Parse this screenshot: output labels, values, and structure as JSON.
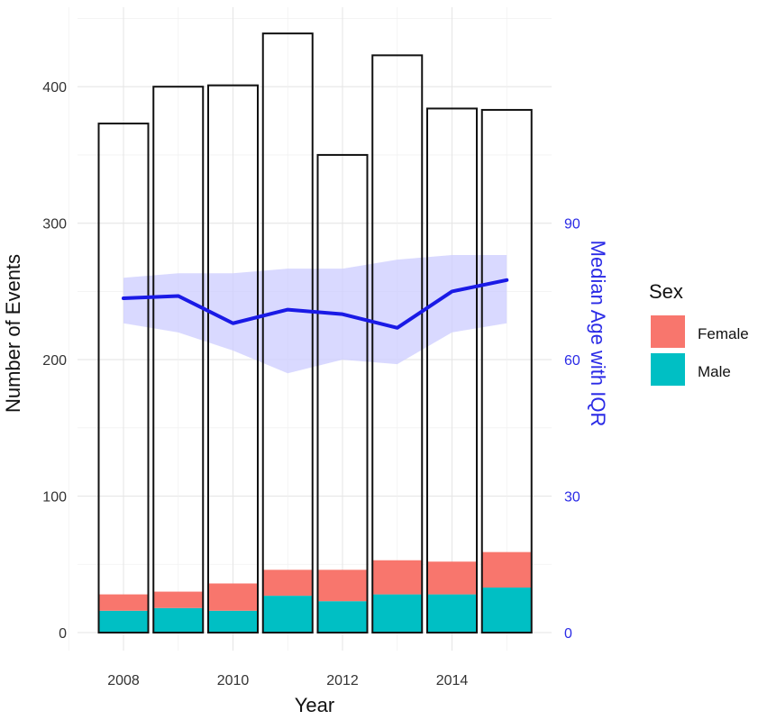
{
  "chart_data": {
    "type": "bar",
    "title": "",
    "xlabel": "Year",
    "ylabel": "Number of Events",
    "y2label": "Median Age with IQR",
    "categories": [
      2008,
      2009,
      2010,
      2011,
      2012,
      2013,
      2014,
      2015
    ],
    "x_ticks": [
      2008,
      2010,
      2012,
      2014
    ],
    "x_tick_labels": [
      "2008",
      "2010",
      "2012",
      "2014"
    ],
    "xlim": [
      2007.5,
      2015.7
    ],
    "ylim": [
      0,
      440
    ],
    "y_ticks": [
      0,
      100,
      200,
      300,
      400
    ],
    "y_tick_labels": [
      "0",
      "100",
      "200",
      "300",
      "400"
    ],
    "y2_ticks": [
      0,
      30,
      60,
      90
    ],
    "y2_tick_labels": [
      "0",
      "30",
      "60",
      "90"
    ],
    "y2_scale_factor": 3.333,
    "total_events": [
      373,
      400,
      401,
      439,
      350,
      423,
      384,
      383
    ],
    "series": [
      {
        "name": "Male",
        "color": "#00BFC4",
        "values": [
          16,
          18,
          16,
          27,
          23,
          28,
          28,
          33
        ]
      },
      {
        "name": "Female",
        "color": "#F8766D",
        "values": [
          12,
          12,
          20,
          19,
          23,
          25,
          24,
          26
        ]
      }
    ],
    "median_age": {
      "name": "Median Age",
      "color": "#1a1ae6",
      "values": [
        73.5,
        74,
        68,
        71,
        70,
        67,
        75,
        77.5
      ]
    },
    "iqr": {
      "name": "IQR",
      "color": "#ccccff",
      "lower": [
        68,
        66,
        62,
        57,
        60,
        59,
        66,
        68
      ],
      "upper": [
        78,
        79,
        79,
        80,
        80,
        82,
        83,
        83
      ]
    },
    "legend": {
      "title": "Sex",
      "position": "right",
      "entries": [
        {
          "label": "Female",
          "color": "#F8766D"
        },
        {
          "label": "Male",
          "color": "#00BFC4"
        }
      ]
    },
    "grid": true
  }
}
